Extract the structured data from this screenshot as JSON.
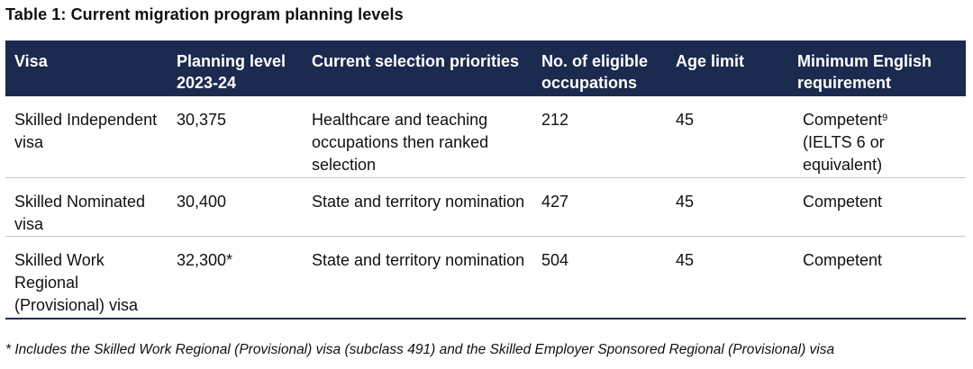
{
  "caption": "Table 1: Current migration program planning levels",
  "columns": [
    "Visa",
    "Planning level 2023-24",
    "Current selection priorities",
    "No. of eligible occupations",
    "Age limit",
    "Minimum English requirement"
  ],
  "rows": [
    {
      "visa": "Skilled Independent visa",
      "planning_level": "30,375",
      "priorities": "Healthcare and teaching occupations then ranked selection",
      "occupations": "212",
      "age_limit": "45",
      "english": "Competent",
      "english_footnote_ref": "9",
      "english_note": "(IELTS 6 or equivalent)"
    },
    {
      "visa": "Skilled Nominated visa",
      "planning_level": "30,400",
      "priorities": "State and territory nomination",
      "occupations": "427",
      "age_limit": "45",
      "english": "Competent"
    },
    {
      "visa": "Skilled Work Regional (Provisional) visa",
      "planning_level": "32,300*",
      "priorities": "State and territory nomination",
      "occupations": "504",
      "age_limit": "45",
      "english": "Competent"
    }
  ],
  "footnote": "* Includes the Skilled Work Regional (Provisional) visa (subclass 491) and the Skilled Employer Sponsored Regional (Provisional) visa",
  "colors": {
    "header_bg": "#1b2a4e",
    "header_text": "#ffffff",
    "row_divider": "#c8c8c8"
  }
}
